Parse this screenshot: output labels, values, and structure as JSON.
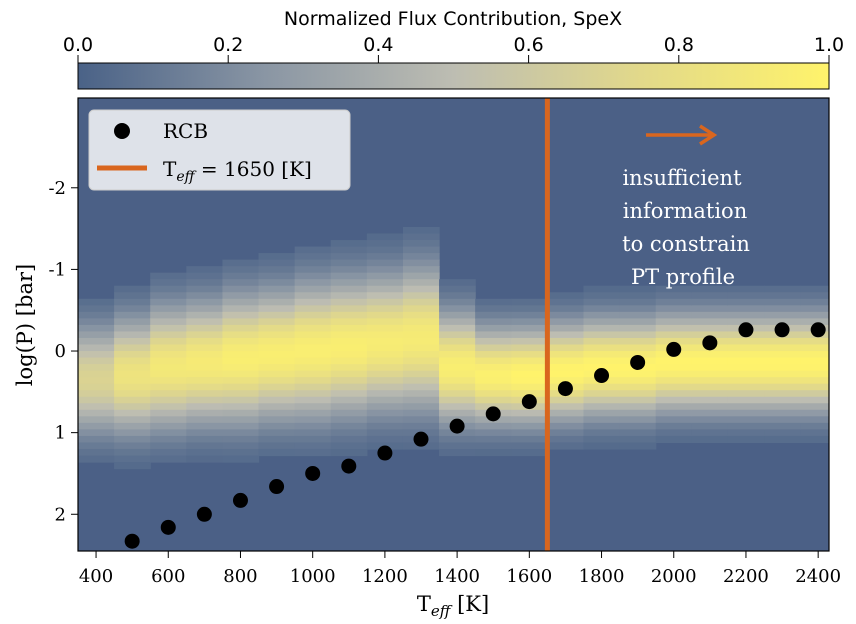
{
  "chart_data": {
    "type": "heatmap",
    "colorbar": {
      "label": "Normalized Flux Contribution, SpeX",
      "ticks": [
        "0.0",
        "0.2",
        "0.4",
        "0.6",
        "0.8",
        "1.0"
      ],
      "range": [
        0.0,
        1.0
      ],
      "placement": "top",
      "colors": [
        "#4a6287",
        "#8a96a4",
        "#bdbdb2",
        "#e2d98a",
        "#fff36b"
      ]
    },
    "xlabel_main": "T",
    "xlabel_sub": "eff",
    "xlabel_unit": " [K]",
    "ylabel": "log(P) [bar]",
    "xlim": [
      350,
      2430
    ],
    "ylim": [
      2.45,
      -3.1
    ],
    "y_inverted": true,
    "x_ticks": [
      "400",
      "600",
      "800",
      "1000",
      "1200",
      "1400",
      "1600",
      "1800",
      "2000",
      "2200",
      "2400"
    ],
    "x_tick_values": [
      400,
      600,
      800,
      1000,
      1200,
      1400,
      1600,
      1800,
      2000,
      2200,
      2400
    ],
    "y_ticks": [
      "-2",
      "-1",
      "0",
      "1",
      "2"
    ],
    "y_tick_values": [
      -2,
      -1,
      0,
      1,
      2
    ],
    "heatmap_columns": [
      {
        "x": 400,
        "center": 0.35,
        "width": 0.9,
        "peak": 0.7
      },
      {
        "x": 500,
        "center": 0.3,
        "width": 0.95,
        "peak": 0.85
      },
      {
        "x": 600,
        "center": 0.2,
        "width": 1.0,
        "peak": 0.9
      },
      {
        "x": 700,
        "center": 0.15,
        "width": 1.0,
        "peak": 0.92
      },
      {
        "x": 800,
        "center": 0.1,
        "width": 1.05,
        "peak": 0.95
      },
      {
        "x": 900,
        "center": 0.05,
        "width": 1.05,
        "peak": 0.95
      },
      {
        "x": 1000,
        "center": 0.0,
        "width": 1.1,
        "peak": 0.95
      },
      {
        "x": 1100,
        "center": -0.05,
        "width": 1.1,
        "peak": 0.95
      },
      {
        "x": 1200,
        "center": -0.1,
        "width": 1.1,
        "peak": 0.93
      },
      {
        "x": 1300,
        "center": -0.15,
        "width": 1.15,
        "peak": 0.92
      },
      {
        "x": 1400,
        "center": 0.2,
        "width": 0.9,
        "peak": 0.95
      },
      {
        "x": 1500,
        "center": 0.3,
        "width": 0.8,
        "peak": 0.97
      },
      {
        "x": 1600,
        "center": 0.3,
        "width": 0.8,
        "peak": 1.0
      },
      {
        "x": 1700,
        "center": 0.25,
        "width": 0.8,
        "peak": 1.0
      },
      {
        "x": 1800,
        "center": 0.2,
        "width": 0.8,
        "peak": 1.0
      },
      {
        "x": 1900,
        "center": 0.2,
        "width": 0.8,
        "peak": 1.0
      },
      {
        "x": 2000,
        "center": 0.15,
        "width": 0.8,
        "peak": 1.0
      },
      {
        "x": 2100,
        "center": 0.15,
        "width": 0.8,
        "peak": 1.0
      },
      {
        "x": 2200,
        "center": 0.15,
        "width": 0.8,
        "peak": 1.0
      },
      {
        "x": 2300,
        "center": 0.15,
        "width": 0.8,
        "peak": 1.0
      },
      {
        "x": 2400,
        "center": 0.15,
        "width": 0.8,
        "peak": 1.0
      }
    ],
    "series": [
      {
        "name": "RCB",
        "type": "scatter",
        "color": "#000000",
        "points": [
          {
            "x": 500,
            "y": 2.33
          },
          {
            "x": 600,
            "y": 2.16
          },
          {
            "x": 700,
            "y": 2.0
          },
          {
            "x": 800,
            "y": 1.83
          },
          {
            "x": 900,
            "y": 1.66
          },
          {
            "x": 1000,
            "y": 1.5
          },
          {
            "x": 1100,
            "y": 1.41
          },
          {
            "x": 1200,
            "y": 1.25
          },
          {
            "x": 1300,
            "y": 1.08
          },
          {
            "x": 1400,
            "y": 0.92
          },
          {
            "x": 1500,
            "y": 0.77
          },
          {
            "x": 1600,
            "y": 0.62
          },
          {
            "x": 1700,
            "y": 0.46
          },
          {
            "x": 1800,
            "y": 0.3
          },
          {
            "x": 1900,
            "y": 0.14
          },
          {
            "x": 2000,
            "y": -0.02
          },
          {
            "x": 2100,
            "y": -0.1
          },
          {
            "x": 2200,
            "y": -0.26
          },
          {
            "x": 2300,
            "y": -0.26
          },
          {
            "x": 2400,
            "y": -0.26
          }
        ]
      }
    ],
    "vline": {
      "x": 1650,
      "color": "#d9661e",
      "label_main": "T",
      "label_sub": "eff",
      "label_rest": " = 1650 [K]"
    },
    "legend": {
      "placement": "top-left",
      "entries": [
        {
          "label": "RCB"
        },
        {
          "label": "T_eff = 1650 [K]"
        }
      ]
    },
    "annotation": {
      "lines": [
        "insufficient",
        "information",
        "to constrain",
        "PT profile"
      ],
      "arrow_color": "#d9661e",
      "text_color": "#ffffff"
    },
    "background_color": "#4b6086"
  }
}
